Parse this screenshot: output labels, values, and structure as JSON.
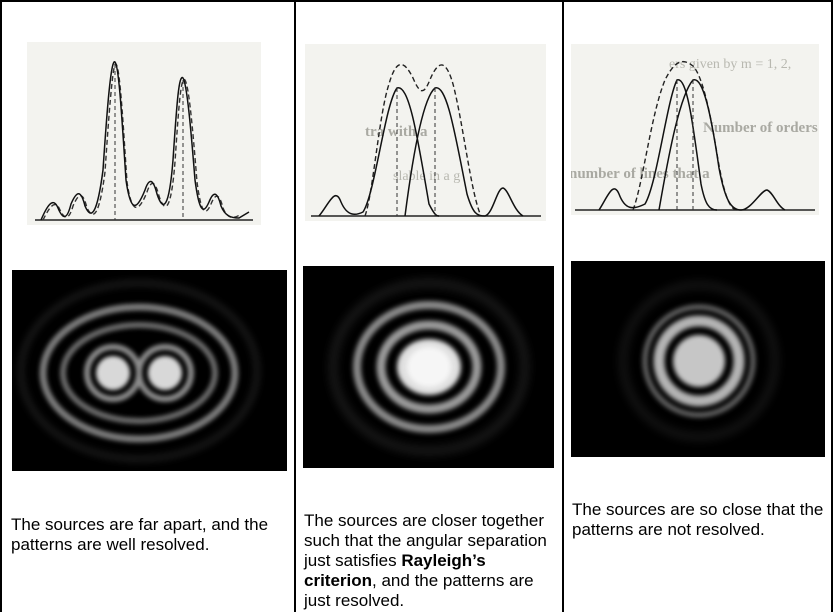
{
  "columns": [
    {
      "id": "resolved",
      "caption_text": "The sources are far apart, and the patterns are well resolved.",
      "figure_semantics": "two-peaks-widely-separated"
    },
    {
      "id": "just-resolved",
      "caption_prefix": "The sources are closer together such that the angular separation just satisfies ",
      "caption_bold": "Rayleigh’s criterion",
      "caption_suffix": ", and the patterns are just resolved.",
      "figure_semantics": "two-peaks-rayleigh-limit"
    },
    {
      "id": "not-resolved",
      "caption_text": "The sources are so close that the patterns are not resolved.",
      "figure_semantics": "two-peaks-merged"
    }
  ],
  "bleed_through_text": {
    "col2_top": "tra with a",
    "col2_mid": "slable in a g",
    "col3_top": "ers given by m = 1, 2,",
    "col3_mid": "Number of orders o",
    "col3_low": "number of lines that a"
  },
  "colors": {
    "border": "#000000",
    "photo_bg": "#000000",
    "plot_paper": "#f3f3ef"
  }
}
